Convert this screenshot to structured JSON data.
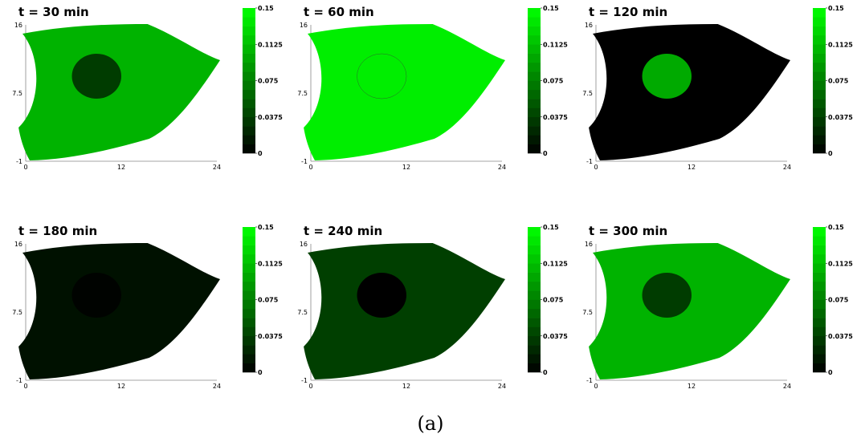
{
  "caption": "(a)",
  "shared": {
    "colorscale": [
      "#000000",
      "#00ff00"
    ],
    "x_ticks": [
      "0",
      "12",
      "24"
    ],
    "y_ticks": [
      "16",
      "7.5",
      "-1"
    ],
    "colorbar_ticks": [
      "0.15",
      "0.1125",
      "0.075",
      "0.0375",
      "0"
    ],
    "colorbar_range": [
      0,
      0.15
    ],
    "colorbar_levels": 16
  },
  "chart_data": [
    {
      "type": "heatmap",
      "title": "t = 30 min",
      "xlim": [
        0,
        24
      ],
      "ylim": [
        -1,
        16
      ],
      "region_value": 0.105,
      "inclusion_value": 0.035,
      "inclusion_outline": false
    },
    {
      "type": "heatmap",
      "title": "t = 60 min",
      "xlim": [
        0,
        24
      ],
      "ylim": [
        -1,
        16
      ],
      "region_value": 0.14,
      "inclusion_value": 0.14,
      "inclusion_outline": true
    },
    {
      "type": "heatmap",
      "title": "t = 120 min",
      "xlim": [
        0,
        24
      ],
      "ylim": [
        -1,
        16
      ],
      "region_value": 0.0,
      "inclusion_value": 0.1,
      "inclusion_outline": false
    },
    {
      "type": "heatmap",
      "title": "t = 180 min",
      "xlim": [
        0,
        24
      ],
      "ylim": [
        -1,
        16
      ],
      "region_value": 0.01,
      "inclusion_value": 0.002,
      "inclusion_outline": false
    },
    {
      "type": "heatmap",
      "title": "t = 240 min",
      "xlim": [
        0,
        24
      ],
      "ylim": [
        -1,
        16
      ],
      "region_value": 0.037,
      "inclusion_value": 0.0,
      "inclusion_outline": false
    },
    {
      "type": "heatmap",
      "title": "t = 300 min",
      "xlim": [
        0,
        24
      ],
      "ylim": [
        -1,
        16
      ],
      "region_value": 0.105,
      "inclusion_value": 0.035,
      "inclusion_outline": false
    }
  ]
}
